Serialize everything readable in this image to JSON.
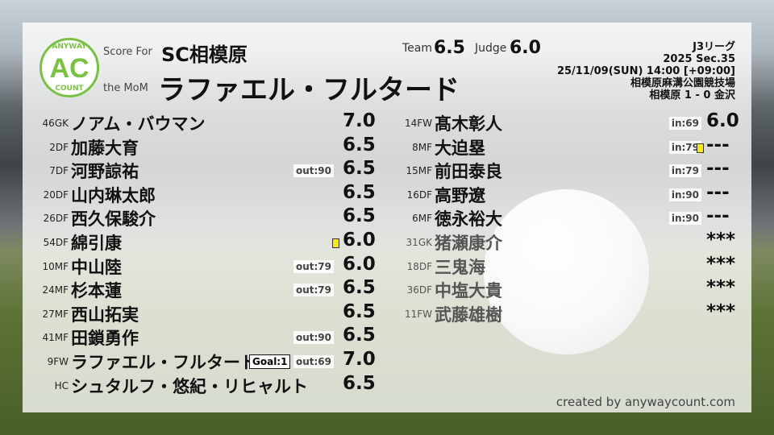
{
  "header": {
    "logo_top": "ANYWAY",
    "logo_mid": "AC",
    "logo_bottom": "COUNT",
    "score_for_label": "Score For",
    "team": "SC相模原",
    "mom_label": "the MoM",
    "mom_name": "ラファエル・フルタード",
    "team_label": "Team",
    "team_score": "6.5",
    "judge_label": "Judge",
    "judge_score": "6.0"
  },
  "match": {
    "league": "J3リーグ",
    "section": "2025 Sec.35",
    "datetime": "25/11/09(SUN) 14:00 [+09:00]",
    "venue": "相模原麻溝公園競技場",
    "result": "相模原 1 - 0 金沢"
  },
  "left_players": [
    {
      "num": "46",
      "pos": "GK",
      "name": "ノアム・バウマン",
      "score": "7.0"
    },
    {
      "num": "2",
      "pos": "DF",
      "name": "加藤大育",
      "score": "6.5"
    },
    {
      "num": "7",
      "pos": "DF",
      "name": "河野諒祐",
      "tag": "out:90",
      "score": "6.5"
    },
    {
      "num": "20",
      "pos": "DF",
      "name": "山内琳太郎",
      "score": "6.5"
    },
    {
      "num": "26",
      "pos": "DF",
      "name": "西久保駿介",
      "score": "6.5"
    },
    {
      "num": "54",
      "pos": "DF",
      "name": "綿引康",
      "yellow": true,
      "score": "6.0"
    },
    {
      "num": "10",
      "pos": "MF",
      "name": "中山陸",
      "tag": "out:79",
      "score": "6.0"
    },
    {
      "num": "24",
      "pos": "MF",
      "name": "杉本蓮",
      "tag": "out:79",
      "score": "6.5"
    },
    {
      "num": "27",
      "pos": "MF",
      "name": "西山拓実",
      "score": "6.5"
    },
    {
      "num": "41",
      "pos": "MF",
      "name": "田鎖勇作",
      "tag": "out:90",
      "score": "6.5"
    },
    {
      "num": "9",
      "pos": "FW",
      "name": "ラファエル・フルタード",
      "goal": "Goal:1",
      "tag": "out:69",
      "score": "7.0"
    },
    {
      "num": "",
      "pos": "HC",
      "name": "シュタルフ・悠紀・リヒャルト",
      "score": "6.5"
    }
  ],
  "right_players": [
    {
      "num": "14",
      "pos": "FW",
      "name": "髙木彰人",
      "tag": "in:69",
      "score": "6.0"
    },
    {
      "num": "8",
      "pos": "MF",
      "name": "大迫塁",
      "tag": "in:79",
      "yellow": true,
      "score": "---"
    },
    {
      "num": "15",
      "pos": "MF",
      "name": "前田泰良",
      "tag": "in:79",
      "score": "---"
    },
    {
      "num": "16",
      "pos": "DF",
      "name": "高野遼",
      "tag": "in:90",
      "score": "---"
    },
    {
      "num": "6",
      "pos": "MF",
      "name": "徳永裕大",
      "tag": "in:90",
      "score": "---"
    },
    {
      "num": "31",
      "pos": "GK",
      "name": "猪瀬康介",
      "score": "***",
      "unused": true
    },
    {
      "num": "18",
      "pos": "DF",
      "name": "三鬼海",
      "score": "***",
      "unused": true
    },
    {
      "num": "36",
      "pos": "DF",
      "name": "中塩大貴",
      "score": "***",
      "unused": true
    },
    {
      "num": "11",
      "pos": "FW",
      "name": "武藤雄樹",
      "score": "***",
      "unused": true
    }
  ],
  "credit": "created by anywaycount.com",
  "colors": {
    "logo": "#7ac143",
    "yellow_card": "#f5ea14"
  }
}
